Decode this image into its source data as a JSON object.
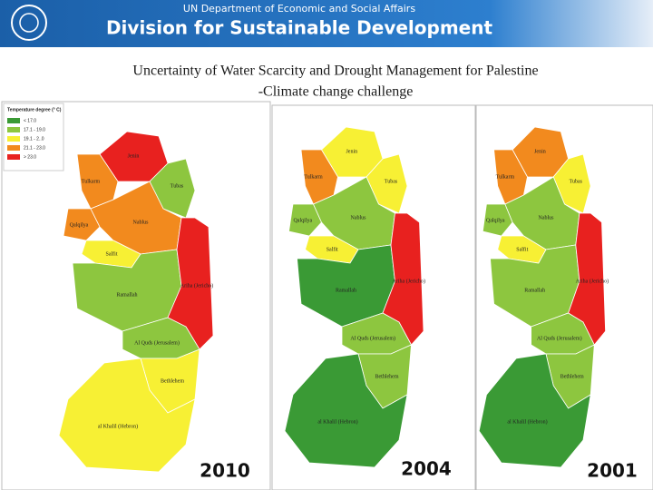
{
  "header": {
    "line1": "UN Department of Economic and Social Affairs",
    "line2": "Division for Sustainable Development"
  },
  "title": {
    "line1": "Uncertainty of Water Scarcity and Drought Management for Palestine",
    "line2": "-Climate change challenge"
  },
  "legend": {
    "title": "Temperature degree (° C)",
    "items": [
      {
        "label": "< 17.0",
        "color": "#3a9a35"
      },
      {
        "label": "17.1 - 19.0",
        "color": "#8dc63f"
      },
      {
        "label": "19.1 - 2..0",
        "color": "#f7f034"
      },
      {
        "label": "21.1 - 23.0",
        "color": "#f28a1e"
      },
      {
        "label": "> 23.0",
        "color": "#e8211f"
      }
    ]
  },
  "maps": [
    {
      "year": "2010",
      "regions": [
        {
          "label": "Jenin",
          "color": "#e8211f"
        },
        {
          "label": "Tubas",
          "color": "#8dc63f"
        },
        {
          "label": "Tulkarm",
          "color": "#f28a1e"
        },
        {
          "label": "Qalqilya",
          "color": "#f28a1e"
        },
        {
          "label": "Nablus",
          "color": "#f28a1e"
        },
        {
          "label": "Salfit",
          "color": "#f7f034"
        },
        {
          "label": "Ramallah",
          "color": "#8dc63f"
        },
        {
          "label": "Ariha (Jericho)",
          "color": "#e8211f"
        },
        {
          "label": "Al Quds (Jerusalem)",
          "color": "#8dc63f"
        },
        {
          "label": "Bethlehem",
          "color": "#f7f034"
        },
        {
          "label": "al Khalil (Hebron)",
          "color": "#f7f034"
        }
      ]
    },
    {
      "year": "2004",
      "regions": [
        {
          "label": "Jenin",
          "color": "#f7f034"
        },
        {
          "label": "Tubas",
          "color": "#f7f034"
        },
        {
          "label": "Tulkarm",
          "color": "#f28a1e"
        },
        {
          "label": "Qalqilya",
          "color": "#8dc63f"
        },
        {
          "label": "Nablus",
          "color": "#8dc63f"
        },
        {
          "label": "Salfit",
          "color": "#f7f034"
        },
        {
          "label": "Ramallah",
          "color": "#3a9a35"
        },
        {
          "label": "Ariha (Jericho)",
          "color": "#e8211f"
        },
        {
          "label": "Al Quds (Jerusalem)",
          "color": "#8dc63f"
        },
        {
          "label": "Bethlehem",
          "color": "#8dc63f"
        },
        {
          "label": "al Khalil (Hebron)",
          "color": "#3a9a35"
        }
      ]
    },
    {
      "year": "2001",
      "regions": [
        {
          "label": "Jenin",
          "color": "#f28a1e"
        },
        {
          "label": "Tubas",
          "color": "#f7f034"
        },
        {
          "label": "Tulkarm",
          "color": "#f28a1e"
        },
        {
          "label": "Qalqilya",
          "color": "#8dc63f"
        },
        {
          "label": "Nablus",
          "color": "#8dc63f"
        },
        {
          "label": "Salfit",
          "color": "#f7f034"
        },
        {
          "label": "Ramallah",
          "color": "#8dc63f"
        },
        {
          "label": "Ariha (Jericho)",
          "color": "#e8211f"
        },
        {
          "label": "Al Quds (Jerusalem)",
          "color": "#8dc63f"
        },
        {
          "label": "Bethlehem",
          "color": "#8dc63f"
        },
        {
          "label": "al Khalil (Hebron)",
          "color": "#3a9a35"
        }
      ]
    }
  ]
}
